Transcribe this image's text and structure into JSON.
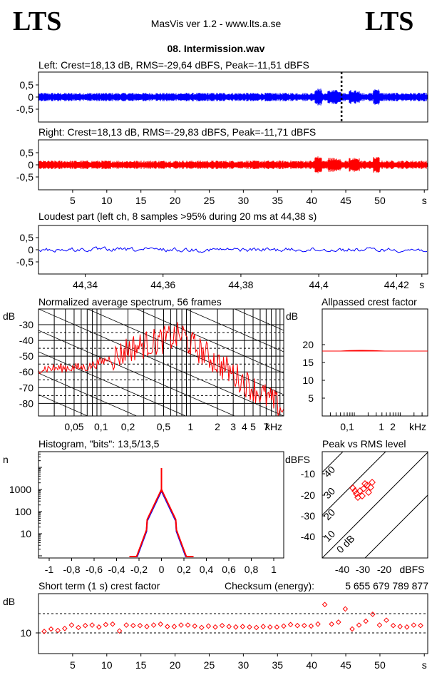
{
  "header": {
    "logo_left": "LTS",
    "logo_right": "LTS",
    "app_title": "MasVis ver 1.2 - www.lts.a.se",
    "file_name": "08. Intermission.wav"
  },
  "colors": {
    "left": "#0000ff",
    "right": "#ff0000",
    "grid": "#000000"
  },
  "chart_data": [
    {
      "id": "left",
      "type": "area",
      "title": "Left: Crest=18,13 dB, RMS=-29,64 dBFS, Peak=-11,51 dBFS",
      "yticks": [
        "0,5",
        "0",
        "-0,5"
      ],
      "ylim": [
        -1,
        1
      ],
      "xlim": [
        0,
        57
      ],
      "marker_x": 44.38
    },
    {
      "id": "right",
      "type": "area",
      "title": "Right: Crest=18,13 dB, RMS=-29,83 dBFS, Peak=-11,71 dBFS",
      "yticks": [
        "0,5",
        "0",
        "-0,5"
      ],
      "ylim": [
        -1,
        1
      ],
      "xlim": [
        0,
        57
      ],
      "xticks": [
        "5",
        "10",
        "15",
        "20",
        "25",
        "30",
        "35",
        "40",
        "45",
        "50",
        "s"
      ]
    },
    {
      "id": "loudest",
      "type": "line",
      "title": "Loudest part (left  ch, 8 samples >95% during 20 ms at 44,38 s)",
      "yticks": [
        "0,5",
        "0",
        "-0,5"
      ],
      "ylim": [
        -1,
        1
      ],
      "xlim": [
        44.328,
        44.428
      ],
      "xticks": [
        "44,34",
        "44,36",
        "44,38",
        "44,4",
        "44,42",
        "s"
      ]
    },
    {
      "id": "spectrum",
      "type": "line",
      "title": "Normalized average spectrum, 56 frames",
      "ylabel": "dB",
      "yticks": [
        "-30",
        "-40",
        "-50",
        "-60",
        "-70",
        "-80"
      ],
      "xticks": [
        "0,05",
        "0,1",
        "0,2",
        "0,5",
        "1",
        "2",
        "3",
        "4",
        "5",
        "7",
        "kHz"
      ],
      "scale": "log"
    },
    {
      "id": "allpassed",
      "type": "line",
      "title": "Allpassed crest factor",
      "ylabel": "dB",
      "yticks": [
        "20",
        "15",
        "10",
        "5"
      ],
      "xticks": [
        "0,1",
        "1",
        "2",
        "kHz"
      ],
      "value": 18.2
    },
    {
      "id": "histogram",
      "type": "line",
      "title": "Histogram, \"bits\": 13,5/13,5",
      "ylabel": "n",
      "yticks": [
        "1000",
        "100",
        "10"
      ],
      "xticks": [
        "-1",
        "-0,8",
        "-0,6",
        "-0,4",
        "-0,2",
        "0",
        "0,2",
        "0,4",
        "0,6",
        "0,8",
        "1"
      ],
      "scale": "log"
    },
    {
      "id": "peakrms",
      "type": "scatter",
      "title": "Peak vs RMS level",
      "ylabel": "dBFS",
      "yticks": [
        "-10",
        "-20",
        "-30",
        "-40"
      ],
      "xticks": [
        "-40",
        "-30",
        "-20",
        "dBFS"
      ],
      "diagonal_labels": [
        "40",
        "30",
        "20",
        "10",
        "0 dB"
      ]
    },
    {
      "id": "shortterm",
      "type": "scatter",
      "title": "Short term (1 s) crest factor",
      "checksum_label": "Checksum (energy):",
      "checksum_value": "5 655 679 789 877",
      "ylabel": "dB",
      "yticks": [
        "10"
      ],
      "xticks": [
        "5",
        "10",
        "15",
        "20",
        "25",
        "30",
        "35",
        "40",
        "45",
        "50",
        "s"
      ],
      "values": [
        10.3,
        10.8,
        10.5,
        10.9,
        11.6,
        11.1,
        11.5,
        11.6,
        11.2,
        11.7,
        11.8,
        10.4,
        11.6,
        11.5,
        11.5,
        11.3,
        11.6,
        11.8,
        11.3,
        11.3,
        11.6,
        11.6,
        11.4,
        11.1,
        11.4,
        11.2,
        11.5,
        11.3,
        11.2,
        11.3,
        11.2,
        11.1,
        11.3,
        11.2,
        11.2,
        11.4,
        11.7,
        11.5,
        11.5,
        11.4,
        11.8,
        15.8,
        11.8,
        12.2,
        14.9,
        10.8,
        11.6,
        12.4,
        13.8,
        11.6,
        12.6,
        11.5,
        11.3,
        11.2,
        11.6,
        11.5
      ]
    }
  ]
}
